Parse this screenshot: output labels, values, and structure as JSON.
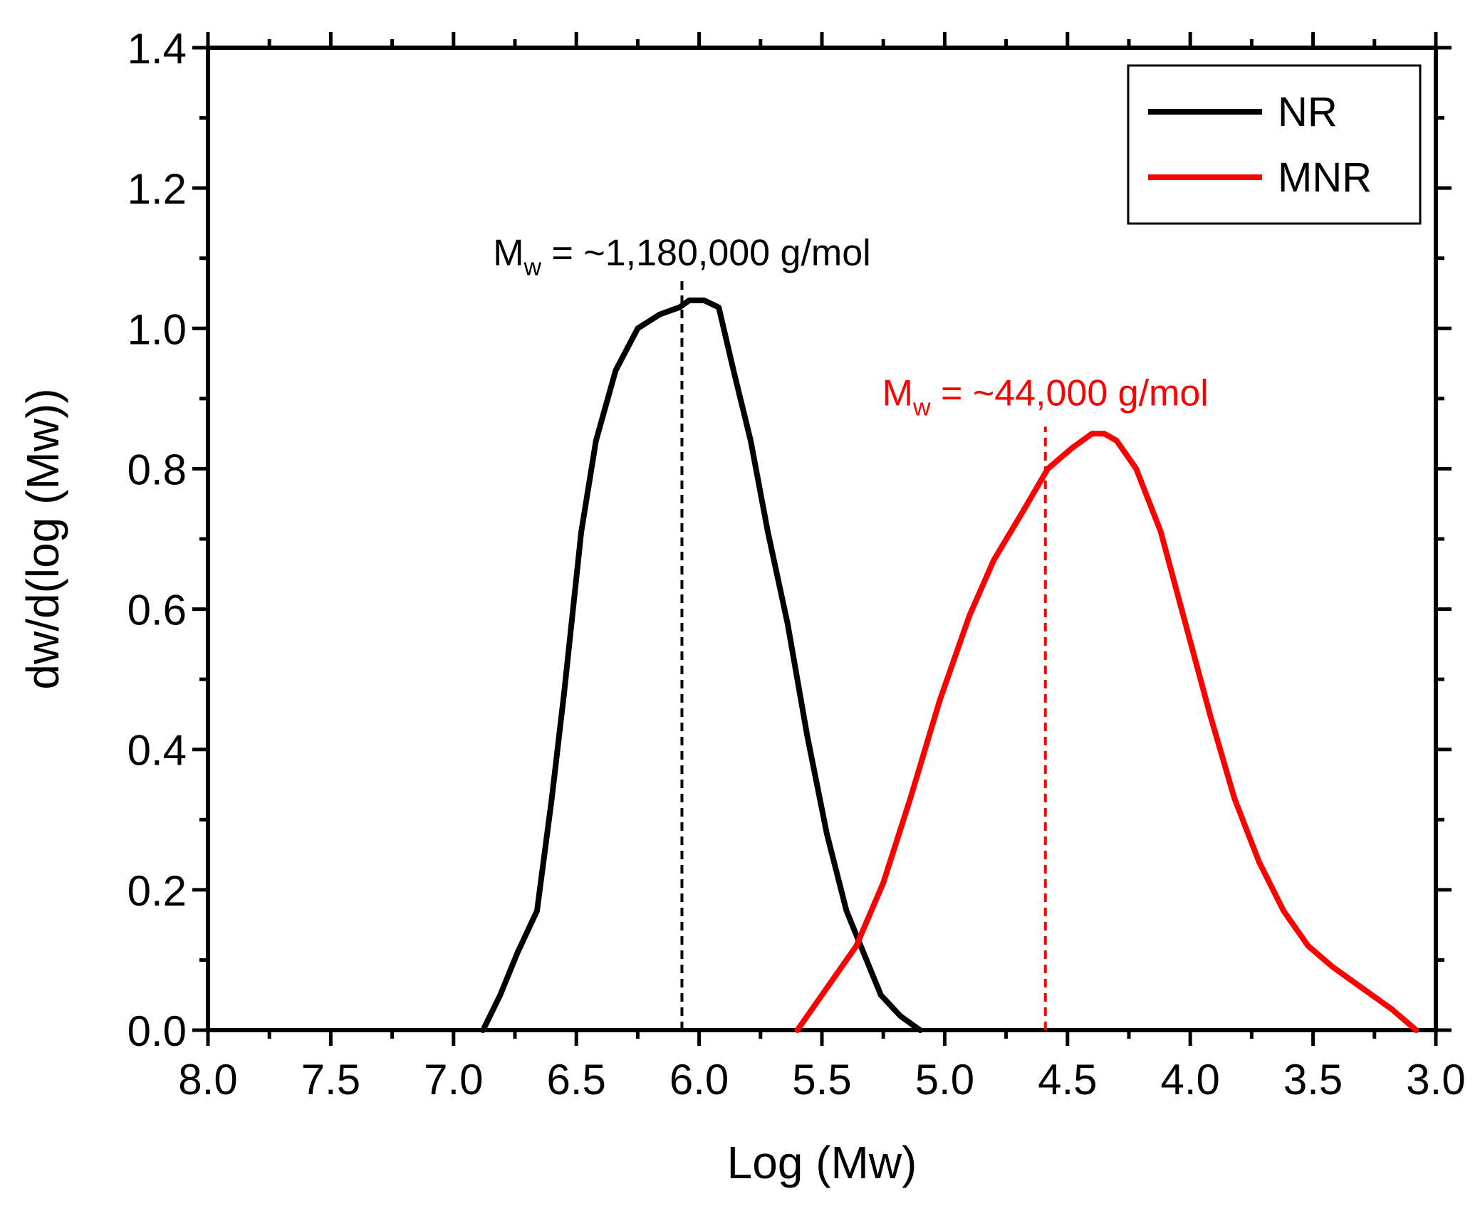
{
  "chart_data": {
    "type": "line",
    "title": "",
    "xlabel": "Log (Mw)",
    "ylabel": "dw/d(log (Mw))",
    "xlim": [
      8.0,
      3.0
    ],
    "ylim": [
      0.0,
      1.4
    ],
    "x_reversed": true,
    "grid": false,
    "legend_position": "top-right",
    "xticks": [
      "8.0",
      "7.5",
      "7.0",
      "6.5",
      "6.0",
      "5.5",
      "5.0",
      "4.5",
      "4.0",
      "3.5",
      "3.0"
    ],
    "yticks": [
      "0.0",
      "0.2",
      "0.4",
      "0.6",
      "0.8",
      "1.0",
      "1.2",
      "1.4"
    ],
    "series": [
      {
        "name": "NR",
        "color": "#000000",
        "x": [
          6.88,
          6.81,
          6.74,
          6.66,
          6.6,
          6.55,
          6.48,
          6.42,
          6.34,
          6.25,
          6.16,
          6.08,
          6.04,
          5.98,
          5.92,
          5.86,
          5.79,
          5.72,
          5.64,
          5.56,
          5.48,
          5.4,
          5.33,
          5.26,
          5.18,
          5.1
        ],
        "y": [
          0.0,
          0.05,
          0.11,
          0.17,
          0.33,
          0.48,
          0.71,
          0.84,
          0.94,
          1.0,
          1.02,
          1.03,
          1.04,
          1.04,
          1.03,
          0.94,
          0.84,
          0.71,
          0.58,
          0.42,
          0.28,
          0.17,
          0.11,
          0.05,
          0.02,
          0.0
        ]
      },
      {
        "name": "MNR",
        "color": "#ff0000",
        "x": [
          5.6,
          5.48,
          5.36,
          5.25,
          5.14,
          5.02,
          4.9,
          4.8,
          4.68,
          4.58,
          4.48,
          4.4,
          4.35,
          4.3,
          4.22,
          4.12,
          4.02,
          3.92,
          3.82,
          3.72,
          3.62,
          3.52,
          3.42,
          3.3,
          3.18,
          3.08
        ],
        "y": [
          0.0,
          0.06,
          0.12,
          0.21,
          0.33,
          0.47,
          0.59,
          0.67,
          0.74,
          0.8,
          0.83,
          0.85,
          0.85,
          0.84,
          0.8,
          0.71,
          0.58,
          0.45,
          0.33,
          0.24,
          0.17,
          0.12,
          0.09,
          0.06,
          0.03,
          0.0
        ]
      }
    ],
    "reference_lines": [
      {
        "series": "NR",
        "x": 6.07,
        "color": "#000000",
        "style": "dashed"
      },
      {
        "series": "MNR",
        "x": 4.59,
        "color": "#ff0000",
        "style": "dashed"
      }
    ],
    "annotations": [
      {
        "id": "nr",
        "prefix": "M",
        "subscript": "w",
        "text": " = ~1,180,000 g/mol",
        "color": "#000000",
        "x": 6.07,
        "y": 1.09
      },
      {
        "id": "mnr",
        "prefix": "M",
        "subscript": "w",
        "text": " = ~44,000 g/mol",
        "color": "#ff0000",
        "x": 4.59,
        "y": 0.89
      }
    ]
  }
}
